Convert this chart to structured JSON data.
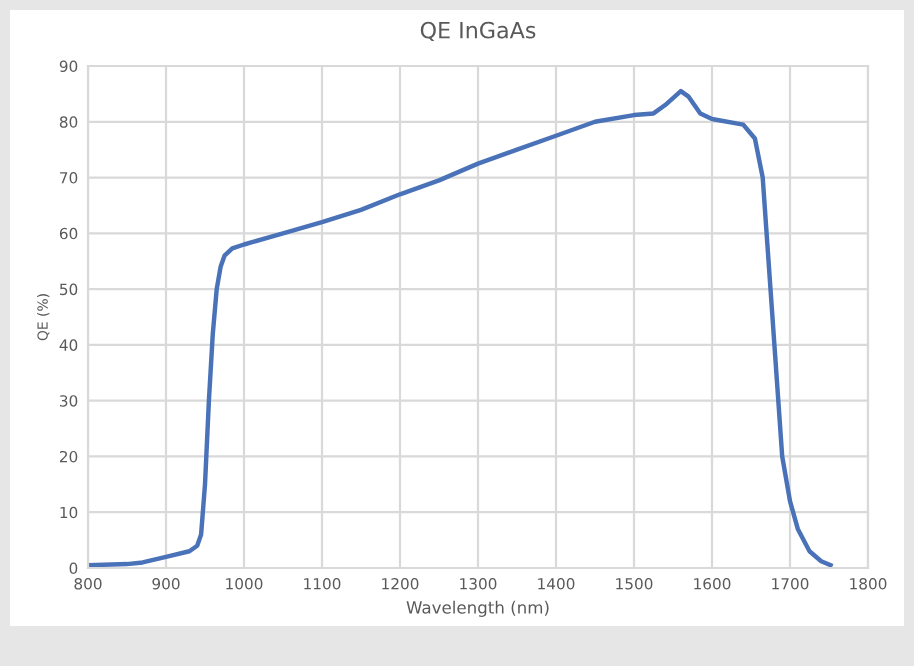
{
  "chart_data": {
    "type": "line",
    "title": "QE InGaAs",
    "xlabel": "Wavelength (nm)",
    "ylabel": "QE (%)",
    "x": [
      800,
      850,
      870,
      900,
      930,
      940,
      945,
      950,
      955,
      960,
      965,
      970,
      975,
      985,
      1000,
      1050,
      1100,
      1150,
      1200,
      1250,
      1300,
      1350,
      1400,
      1450,
      1500,
      1525,
      1540,
      1560,
      1570,
      1585,
      1600,
      1640,
      1655,
      1665,
      1675,
      1680,
      1690,
      1700,
      1710,
      1725,
      1740,
      1752
    ],
    "series": [
      {
        "color": "#4a72b8",
        "values": [
          0.5,
          0.7,
          1,
          2,
          3,
          4,
          6,
          15,
          30,
          42,
          50,
          54,
          56,
          57.3,
          58,
          60,
          62,
          64.2,
          67,
          69.5,
          72.5,
          75,
          77.5,
          80,
          81.2,
          81.5,
          83,
          85.5,
          84.5,
          81.5,
          80.5,
          79.5,
          77,
          70,
          50,
          40,
          20,
          12,
          7,
          3,
          1.2,
          0.5
        ]
      }
    ],
    "xlim": [
      800,
      1800
    ],
    "xticks": [
      800,
      900,
      1000,
      1100,
      1200,
      1300,
      1400,
      1500,
      1600,
      1700,
      1800
    ],
    "ylim": [
      0,
      90
    ],
    "yticks": [
      0,
      10,
      20,
      30,
      40,
      50,
      60,
      70,
      80,
      90
    ],
    "grid": true,
    "legend": false
  }
}
